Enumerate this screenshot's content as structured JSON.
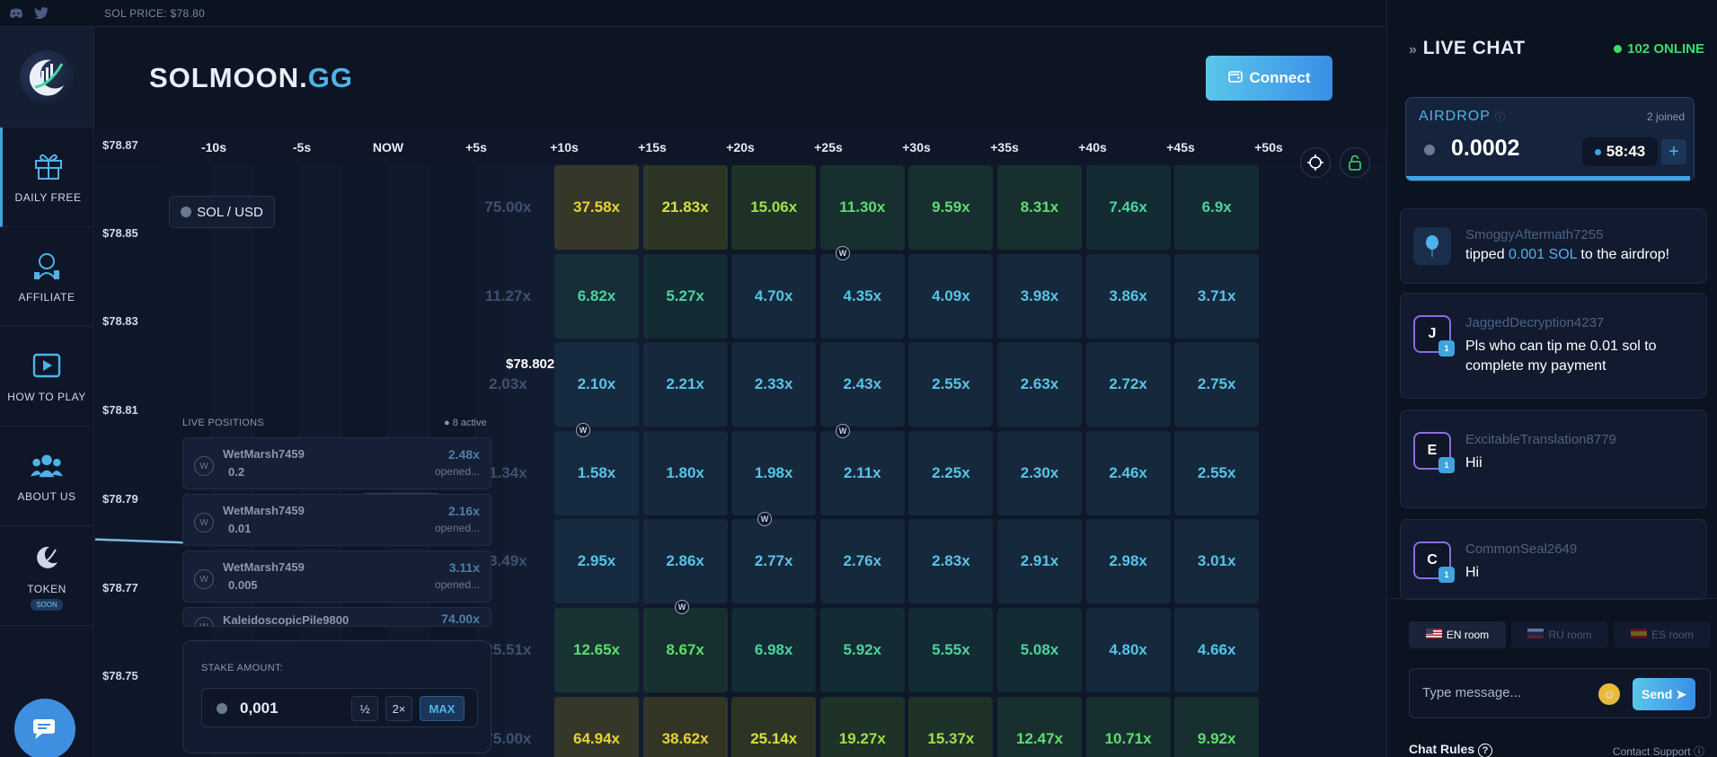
{
  "topbar": {
    "sol_price": "SOL PRICE: $78.80",
    "icons": [
      "discord-icon",
      "twitter-icon"
    ]
  },
  "brand": {
    "name": "SOLMOON.",
    "suffix": "GG"
  },
  "header": {
    "connect_label": "Connect"
  },
  "nav": [
    {
      "key": "daily-free",
      "label": "DAILY FREE",
      "icon": "gift-icon"
    },
    {
      "key": "affiliate",
      "label": "AFFILIATE",
      "icon": "affiliate-icon"
    },
    {
      "key": "how-to-play",
      "label": "HOW TO PLAY",
      "icon": "play-icon"
    },
    {
      "key": "about-us",
      "label": "ABOUT US",
      "icon": "users-icon"
    },
    {
      "key": "token",
      "label": "TOKEN",
      "icon": "token-icon",
      "badge": "SOON"
    }
  ],
  "game": {
    "pair": "SOL / USD",
    "current_price": "$78.802",
    "time_labels": [
      "-10s",
      "-5s",
      "NOW",
      "+5s",
      "+10s",
      "+15s",
      "+20s",
      "+25s",
      "+30s",
      "+35s",
      "+40s",
      "+45s",
      "+50s"
    ],
    "price_labels": [
      "$78.87",
      "$78.85",
      "$78.83",
      "$78.81",
      "$78.79",
      "$78.77",
      "$78.75"
    ],
    "past_column": [
      "75.00x",
      "11.27x",
      "2.03x",
      "1.34x",
      "3.49x",
      "25.51x",
      "75.00x"
    ],
    "grid": [
      [
        "37.58x",
        "21.83x",
        "15.06x",
        "11.30x",
        "9.59x",
        "8.31x",
        "7.46x",
        "6.9x"
      ],
      [
        "6.82x",
        "5.27x",
        "4.70x",
        "4.35x",
        "4.09x",
        "3.98x",
        "3.86x",
        "3.71x"
      ],
      [
        "2.10x",
        "2.21x",
        "2.33x",
        "2.43x",
        "2.55x",
        "2.63x",
        "2.72x",
        "2.75x"
      ],
      [
        "1.58x",
        "1.80x",
        "1.98x",
        "2.11x",
        "2.25x",
        "2.30x",
        "2.46x",
        "2.55x"
      ],
      [
        "2.95x",
        "2.86x",
        "2.77x",
        "2.76x",
        "2.83x",
        "2.91x",
        "2.98x",
        "3.01x"
      ],
      [
        "12.65x",
        "8.67x",
        "6.98x",
        "5.92x",
        "5.55x",
        "5.08x",
        "4.80x",
        "4.66x"
      ],
      [
        "64.94x",
        "38.62x",
        "25.14x",
        "19.27x",
        "15.37x",
        "12.47x",
        "10.71x",
        "9.92x"
      ]
    ],
    "live_positions": {
      "title": "LIVE POSITIONS",
      "active": "8 active",
      "items": [
        {
          "user": "WetMarsh7459",
          "amount": "0.2",
          "mult": "2.48x",
          "status": "opened..."
        },
        {
          "user": "WetMarsh7459",
          "amount": "0.01",
          "mult": "2.16x",
          "status": "opened..."
        },
        {
          "user": "WetMarsh7459",
          "amount": "0.005",
          "mult": "3.11x",
          "status": "opened..."
        },
        {
          "user": "KaleidoscopicPile9800",
          "amount": "",
          "mult": "74.00x",
          "status": ""
        }
      ]
    },
    "stake": {
      "label": "STAKE AMOUNT:",
      "value": "0,001",
      "half": "½",
      "double": "2×",
      "max": "MAX"
    },
    "chart_data": {
      "type": "line",
      "title": "",
      "xlabel": "",
      "ylabel": "",
      "x": [
        "-10s",
        "-5s",
        "NOW"
      ],
      "series": [
        {
          "values": [
            78.794,
            78.793,
            78.802
          ]
        }
      ],
      "ylim": [
        78.75,
        78.87
      ]
    }
  },
  "chat": {
    "title": "LIVE CHAT",
    "online": "102 ONLINE",
    "airdrop": {
      "title": "AIRDROP",
      "joined": "2 joined",
      "value": "0.0002",
      "timer": "58:43",
      "progress": 0.98
    },
    "messages": [
      {
        "user": "SmoggyAftermath7255",
        "text_pre": "tipped ",
        "text_highlight": "0.001 SOL",
        "text_post": " to the airdrop!",
        "avatar": ""
      },
      {
        "user": "JaggedDecryption4237",
        "text": "Pls who can tip me 0.01 sol to complete my payment",
        "avatar": "J",
        "level": "1"
      },
      {
        "user": "ExcitableTranslation8779",
        "text": "Hii",
        "avatar": "E",
        "level": "1"
      },
      {
        "user": "CommonSeal2649",
        "text": "Hi",
        "avatar": "C",
        "level": "1"
      }
    ],
    "rooms": [
      {
        "label": "EN room",
        "active": true
      },
      {
        "label": "RU room",
        "active": false
      },
      {
        "label": "ES room",
        "active": false
      }
    ],
    "input_placeholder": "Type message...",
    "send_label": "Send",
    "rules_label": "Chat Rules",
    "support_label": "Contact Support"
  }
}
